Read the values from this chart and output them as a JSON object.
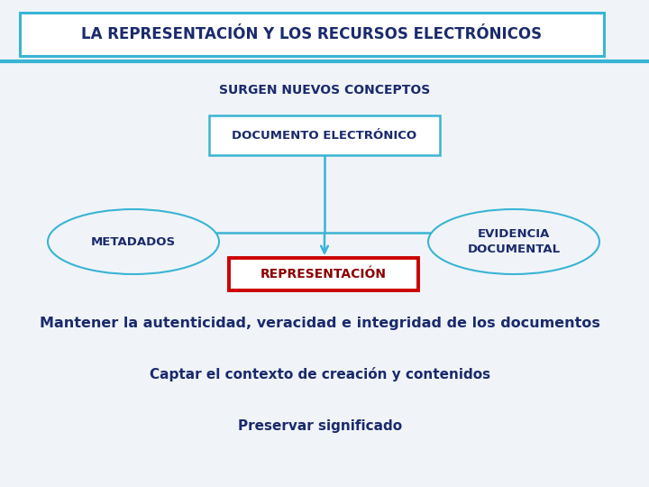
{
  "title": "LA REPRESENTACIÓN Y LOS RECURSOS ELECTRÓNICOS",
  "subtitle": "SURGEN NUEVOS CONCEPTOS",
  "box1_text": "DOCUMENTO ELECTRÓNICO",
  "ellipse_left_text": "METADADOS",
  "ellipse_right_text": "EVIDENCIA\nDOCUMENTAL",
  "box2_text": "REPRESENTACIÓN",
  "line1": "Mantener la autenticidad, veracidad e integridad de los documentos",
  "line2": "Captar el contexto de creación y contenidos",
  "line3": "Preservar significado",
  "bg_color": "#f0f4f8",
  "title_box_color": "#3ab4d4",
  "title_bg": "#ffffff",
  "title_text_color": "#1a2a6c",
  "header_line_color": "#3ab4d4",
  "subtitle_color": "#1a2a6c",
  "doc_box_border": "#3ab4d4",
  "doc_box_bg": "#ffffff",
  "doc_text_color": "#1a2a6c",
  "ellipse_border": "#3ab4d4",
  "ellipse_bg": "#f0f4f8",
  "ellipse_text_color": "#1a2a6c",
  "repr_box_border": "#cc0000",
  "repr_box_bg": "#ffffff",
  "repr_text_color": "#8b0000",
  "arrow_color": "#3ab4d4",
  "body_text_color": "#1a2a6c",
  "line1_fontsize": 11.5,
  "line2_fontsize": 11,
  "line3_fontsize": 11
}
